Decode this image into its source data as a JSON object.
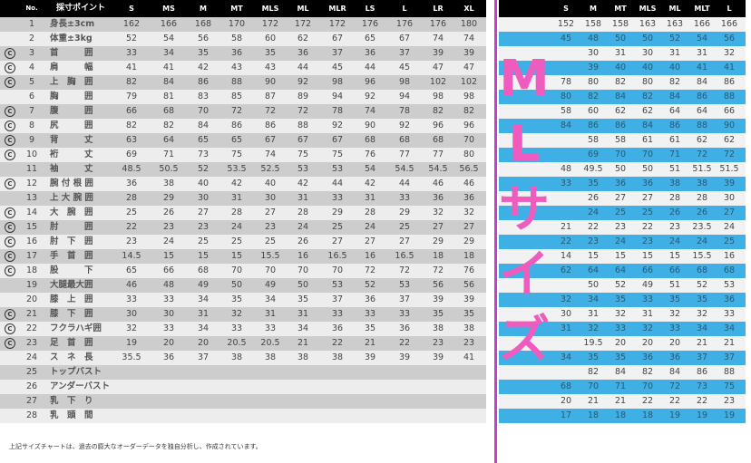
{
  "left_table": {
    "headers": {
      "no": "No.",
      "point": "採寸ポイント",
      "sizes": [
        "S",
        "MS",
        "M",
        "MT",
        "MLS",
        "ML",
        "MLR",
        "LS",
        "L",
        "LR",
        "XL"
      ]
    },
    "c_mark_symbol": "C",
    "rows": [
      {
        "no": "1",
        "label": "身長±3cm",
        "c": false,
        "values": [
          "162",
          "166",
          "168",
          "170",
          "172",
          "172",
          "172",
          "176",
          "176",
          "176",
          "180"
        ]
      },
      {
        "no": "2",
        "label": "体重±3kg",
        "c": false,
        "values": [
          "52",
          "54",
          "56",
          "58",
          "60",
          "62",
          "67",
          "65",
          "67",
          "74",
          "74"
        ]
      },
      {
        "no": "3",
        "label": "首　　　囲",
        "c": true,
        "values": [
          "33",
          "34",
          "35",
          "36",
          "35",
          "36",
          "37",
          "36",
          "37",
          "39",
          "39"
        ]
      },
      {
        "no": "4",
        "label": "肩　　　幅",
        "c": true,
        "values": [
          "41",
          "41",
          "42",
          "43",
          "43",
          "44",
          "45",
          "44",
          "45",
          "47",
          "47"
        ]
      },
      {
        "no": "5",
        "label": "上　胸　囲",
        "c": true,
        "values": [
          "82",
          "84",
          "86",
          "88",
          "90",
          "92",
          "98",
          "96",
          "98",
          "102",
          "102"
        ]
      },
      {
        "no": "6",
        "label": "胸　　　囲",
        "c": false,
        "values": [
          "79",
          "81",
          "83",
          "85",
          "87",
          "89",
          "94",
          "92",
          "94",
          "98",
          "98"
        ]
      },
      {
        "no": "7",
        "label": "腹　　　囲",
        "c": true,
        "values": [
          "66",
          "68",
          "70",
          "72",
          "72",
          "72",
          "78",
          "74",
          "78",
          "82",
          "82"
        ]
      },
      {
        "no": "8",
        "label": "尻　　　囲",
        "c": true,
        "values": [
          "82",
          "82",
          "84",
          "86",
          "86",
          "88",
          "92",
          "90",
          "92",
          "96",
          "96"
        ]
      },
      {
        "no": "9",
        "label": "背　　　丈",
        "c": true,
        "values": [
          "63",
          "64",
          "65",
          "65",
          "67",
          "67",
          "67",
          "68",
          "68",
          "68",
          "70"
        ]
      },
      {
        "no": "10",
        "label": "裄　　　丈",
        "c": true,
        "values": [
          "69",
          "71",
          "73",
          "75",
          "74",
          "75",
          "75",
          "76",
          "77",
          "77",
          "80"
        ]
      },
      {
        "no": "11",
        "label": "袖　　　丈",
        "c": false,
        "values": [
          "48.5",
          "50.5",
          "52",
          "53.5",
          "52.5",
          "53",
          "53",
          "54",
          "54.5",
          "54.5",
          "56.5"
        ]
      },
      {
        "no": "12",
        "label": "腕 付 根 囲",
        "c": true,
        "values": [
          "36",
          "38",
          "40",
          "42",
          "40",
          "42",
          "44",
          "42",
          "44",
          "46",
          "46"
        ]
      },
      {
        "no": "13",
        "label": "上 大 腕 囲",
        "c": false,
        "values": [
          "28",
          "29",
          "30",
          "31",
          "30",
          "31",
          "33",
          "31",
          "33",
          "36",
          "36"
        ]
      },
      {
        "no": "14",
        "label": "大　腕　囲",
        "c": true,
        "values": [
          "25",
          "26",
          "27",
          "28",
          "27",
          "28",
          "29",
          "28",
          "29",
          "32",
          "32"
        ]
      },
      {
        "no": "15",
        "label": "肘　　　囲",
        "c": true,
        "values": [
          "22",
          "23",
          "23",
          "24",
          "23",
          "24",
          "25",
          "24",
          "25",
          "27",
          "27"
        ]
      },
      {
        "no": "16",
        "label": "肘　下　囲",
        "c": true,
        "values": [
          "23",
          "24",
          "25",
          "25",
          "25",
          "26",
          "27",
          "27",
          "27",
          "29",
          "29"
        ]
      },
      {
        "no": "17",
        "label": "手　首　囲",
        "c": true,
        "values": [
          "14.5",
          "15",
          "15",
          "15",
          "15.5",
          "16",
          "16.5",
          "16",
          "16.5",
          "18",
          "18"
        ]
      },
      {
        "no": "18",
        "label": "股　　　下",
        "c": true,
        "values": [
          "65",
          "66",
          "68",
          "70",
          "70",
          "70",
          "70",
          "72",
          "72",
          "72",
          "76"
        ]
      },
      {
        "no": "19",
        "label": "大腿最大囲",
        "c": false,
        "values": [
          "46",
          "48",
          "49",
          "50",
          "49",
          "50",
          "53",
          "52",
          "53",
          "56",
          "56"
        ]
      },
      {
        "no": "20",
        "label": "膝　上　囲",
        "c": false,
        "values": [
          "33",
          "33",
          "34",
          "35",
          "34",
          "35",
          "37",
          "36",
          "37",
          "39",
          "39"
        ]
      },
      {
        "no": "21",
        "label": "膝　下　囲",
        "c": true,
        "values": [
          "30",
          "30",
          "31",
          "32",
          "31",
          "31",
          "33",
          "33",
          "33",
          "35",
          "35"
        ]
      },
      {
        "no": "22",
        "label": "フクラハギ囲",
        "c": true,
        "values": [
          "32",
          "33",
          "34",
          "33",
          "33",
          "34",
          "36",
          "35",
          "36",
          "38",
          "38"
        ]
      },
      {
        "no": "23",
        "label": "足　首　囲",
        "c": true,
        "values": [
          "19",
          "20",
          "20",
          "20.5",
          "20.5",
          "21",
          "22",
          "21",
          "22",
          "23",
          "23"
        ]
      },
      {
        "no": "24",
        "label": "ス　ネ　長",
        "c": false,
        "values": [
          "35.5",
          "36",
          "37",
          "38",
          "38",
          "38",
          "38",
          "39",
          "39",
          "39",
          "41"
        ]
      },
      {
        "no": "25",
        "label": "トップバスト",
        "c": false,
        "values": [
          "",
          "",
          "",
          "",
          "",
          "",
          "",
          "",
          "",
          "",
          ""
        ]
      },
      {
        "no": "26",
        "label": "アンダーバスト",
        "c": false,
        "values": [
          "",
          "",
          "",
          "",
          "",
          "",
          "",
          "",
          "",
          "",
          ""
        ]
      },
      {
        "no": "27",
        "label": "乳　下　り",
        "c": false,
        "values": [
          "",
          "",
          "",
          "",
          "",
          "",
          "",
          "",
          "",
          "",
          ""
        ]
      },
      {
        "no": "28",
        "label": "乳　頭　間",
        "c": false,
        "values": [
          "",
          "",
          "",
          "",
          "",
          "",
          "",
          "",
          "",
          "",
          ""
        ]
      }
    ]
  },
  "right_table": {
    "headers": [
      "S",
      "M",
      "MT",
      "MLS",
      "ML",
      "MLT",
      "L"
    ],
    "rows": [
      [
        "152",
        "158",
        "158",
        "163",
        "163",
        "166",
        "166"
      ],
      [
        "45",
        "48",
        "50",
        "50",
        "52",
        "54",
        "56"
      ],
      [
        "",
        "30",
        "31",
        "30",
        "31",
        "31",
        "32"
      ],
      [
        "",
        "39",
        "40",
        "40",
        "40",
        "41",
        "41"
      ],
      [
        "78",
        "80",
        "82",
        "80",
        "82",
        "84",
        "86"
      ],
      [
        "80",
        "82",
        "84",
        "82",
        "84",
        "86",
        "88"
      ],
      [
        "58",
        "60",
        "62",
        "62",
        "64",
        "64",
        "66"
      ],
      [
        "84",
        "86",
        "86",
        "84",
        "86",
        "88",
        "90"
      ],
      [
        "",
        "58",
        "58",
        "61",
        "61",
        "62",
        "62"
      ],
      [
        "",
        "69",
        "70",
        "70",
        "71",
        "72",
        "72"
      ],
      [
        "48",
        "49.5",
        "50",
        "50",
        "51",
        "51.5",
        "51.5"
      ],
      [
        "33",
        "35",
        "36",
        "36",
        "38",
        "38",
        "39"
      ],
      [
        "",
        "26",
        "27",
        "27",
        "28",
        "28",
        "30"
      ],
      [
        "",
        "24",
        "25",
        "25",
        "26",
        "26",
        "27"
      ],
      [
        "21",
        "22",
        "23",
        "22",
        "23",
        "23.5",
        "24"
      ],
      [
        "22",
        "23",
        "24",
        "23",
        "24",
        "24",
        "25"
      ],
      [
        "14",
        "15",
        "15",
        "15",
        "15",
        "15.5",
        "16"
      ],
      [
        "62",
        "64",
        "64",
        "66",
        "66",
        "68",
        "68"
      ],
      [
        "",
        "50",
        "52",
        "49",
        "51",
        "52",
        "53"
      ],
      [
        "32",
        "34",
        "35",
        "33",
        "35",
        "35",
        "36"
      ],
      [
        "30",
        "31",
        "32",
        "31",
        "32",
        "32",
        "33"
      ],
      [
        "31",
        "32",
        "33",
        "32",
        "33",
        "34",
        "34"
      ],
      [
        "",
        "19.5",
        "20",
        "20",
        "20",
        "21",
        "21"
      ],
      [
        "34",
        "35",
        "35",
        "36",
        "36",
        "37",
        "37"
      ],
      [
        "",
        "82",
        "84",
        "82",
        "84",
        "86",
        "88"
      ],
      [
        "68",
        "70",
        "71",
        "70",
        "72",
        "73",
        "75"
      ],
      [
        "20",
        "21",
        "21",
        "22",
        "22",
        "22",
        "23"
      ],
      [
        "17",
        "18",
        "18",
        "18",
        "19",
        "19",
        "19"
      ]
    ]
  },
  "overlay_text": [
    "M",
    "L",
    "サ",
    "イ",
    "ズ"
  ],
  "footnote": "上記サイズチャートは、過去の膨大なオーダーデータを独自分析し、作成されています。",
  "colors": {
    "overlay_pink": "#f05bbf",
    "divider": "#c83cc8",
    "blue_stripe": "#3fb0e6",
    "header": "#000000"
  }
}
